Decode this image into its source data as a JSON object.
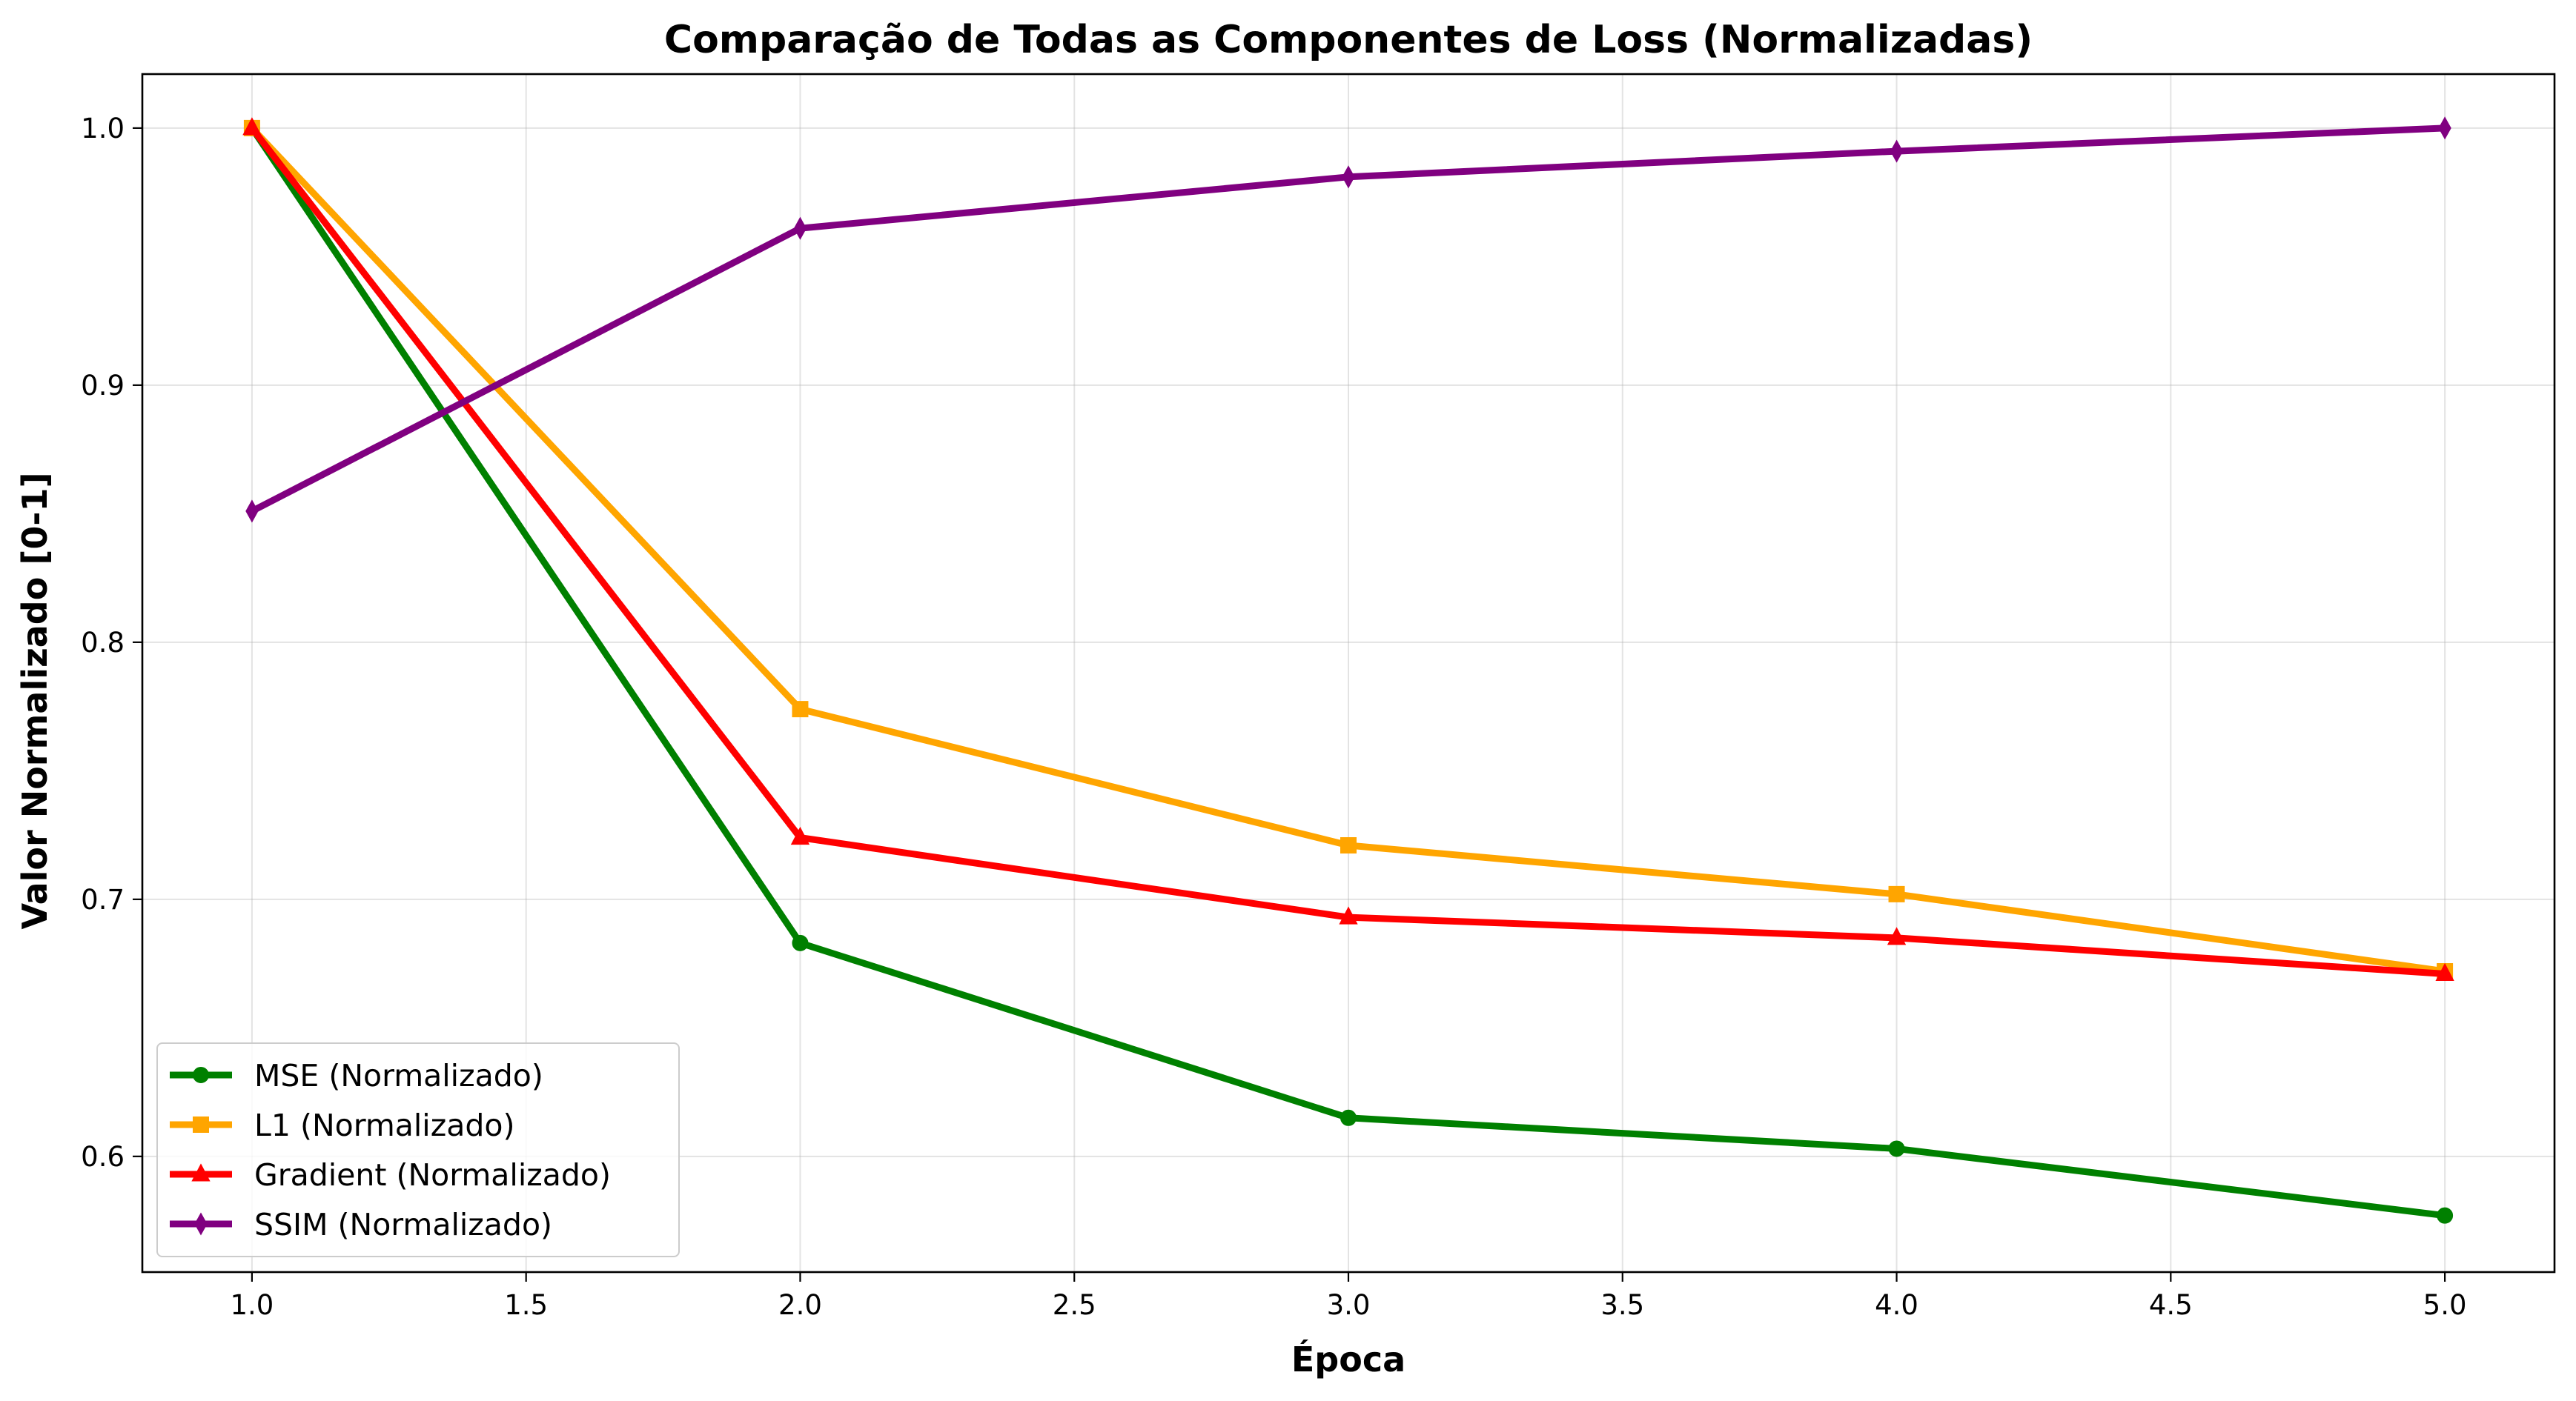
{
  "chart_data": {
    "type": "line",
    "title": "Comparação de Todas as Componentes de Loss (Normalizadas)",
    "xlabel": "Época",
    "ylabel": "Valor Normalizado [0-1]",
    "xlim": [
      0.8,
      5.2
    ],
    "ylim": [
      0.555,
      1.021
    ],
    "xticks": [
      1.0,
      1.5,
      2.0,
      2.5,
      3.0,
      3.5,
      4.0,
      4.5,
      5.0
    ],
    "xtick_labels": [
      "1.0",
      "1.5",
      "2.0",
      "2.5",
      "3.0",
      "3.5",
      "4.0",
      "4.5",
      "5.0"
    ],
    "yticks": [
      0.6,
      0.7,
      0.8,
      0.9,
      1.0
    ],
    "ytick_labels": [
      "0.6",
      "0.7",
      "0.8",
      "0.9",
      "1.0"
    ],
    "grid": true,
    "legend_position": "lower-left",
    "x": [
      1,
      2,
      3,
      4,
      5
    ],
    "series": [
      {
        "name": "MSE (Normalizado)",
        "color": "#008000",
        "marker": "circle",
        "values": [
          1.0,
          0.683,
          0.615,
          0.603,
          0.577
        ]
      },
      {
        "name": "L1 (Normalizado)",
        "color": "#ffa500",
        "marker": "square",
        "values": [
          1.0,
          0.774,
          0.721,
          0.702,
          0.672
        ]
      },
      {
        "name": "Gradient (Normalizado)",
        "color": "#ff0000",
        "marker": "triangle",
        "values": [
          1.0,
          0.724,
          0.693,
          0.685,
          0.671
        ]
      },
      {
        "name": "SSIM (Normalizado)",
        "color": "#800080",
        "marker": "diamond",
        "values": [
          0.851,
          0.961,
          0.981,
          0.991,
          1.0
        ]
      }
    ]
  }
}
